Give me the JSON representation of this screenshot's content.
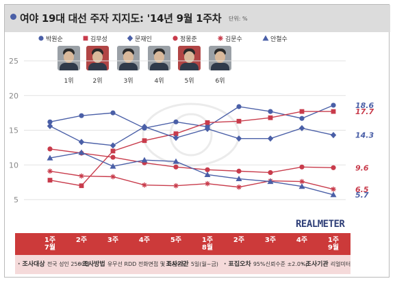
{
  "title": "여야 19대 대선 주자 지지도: '14년 9월 1주차",
  "unit": "단위: %",
  "legend": [
    {
      "name": "박원순",
      "marker": "circle",
      "color": "#4a5fa7"
    },
    {
      "name": "김무성",
      "marker": "square",
      "color": "#c83b4b"
    },
    {
      "name": "문재인",
      "marker": "diamond",
      "color": "#4a5fa7"
    },
    {
      "name": "정몽준",
      "marker": "circle",
      "color": "#c83b4b"
    },
    {
      "name": "김문수",
      "marker": "asterisk",
      "color": "#c83b4b"
    },
    {
      "name": "안철수",
      "marker": "triangle",
      "color": "#4a5fa7"
    }
  ],
  "ranks": [
    "1위",
    "2위",
    "3위",
    "4위",
    "5위",
    "6위"
  ],
  "brand": "REALMETER",
  "footnote": {
    "items": [
      {
        "label": "조사대상",
        "text": "전국 성인 2500명"
      },
      {
        "label": "조사방법",
        "text": "유무선 RDD 전화면접 및 자동응답"
      },
      {
        "label": "조사기간",
        "text": "5일(월~금)"
      },
      {
        "label": "표집오차",
        "text": "95%신뢰수준 ±2.0%p"
      },
      {
        "label": "조사기관",
        "text": "리얼미터"
      }
    ]
  },
  "chart_data": {
    "type": "line",
    "title": "여야 19대 대선 주자 지지도: '14년 9월 1주차",
    "unit": "%",
    "x": [
      "1주\n7월",
      "2주",
      "3주",
      "4주",
      "5주",
      "1주\n8월",
      "2주",
      "3주",
      "4주",
      "1주\n9월"
    ],
    "ylim": [
      5,
      25
    ],
    "yticks": [
      5,
      10,
      15,
      20,
      25
    ],
    "grid": true,
    "legend_position": "top",
    "series": [
      {
        "name": "박원순",
        "color": "#4a5fa7",
        "marker": "circle",
        "values": [
          16.2,
          17.1,
          17.5,
          15.3,
          16.2,
          15.5,
          18.4,
          17.7,
          16.7,
          18.6
        ],
        "end_label": "18.6"
      },
      {
        "name": "김무성",
        "color": "#c83b4b",
        "marker": "square",
        "values": [
          7.8,
          7.0,
          12.0,
          13.5,
          14.5,
          16.1,
          16.3,
          16.8,
          17.7,
          17.7
        ],
        "end_label": "17.7"
      },
      {
        "name": "문재인",
        "color": "#4a5fa7",
        "marker": "diamond",
        "values": [
          15.6,
          13.3,
          12.8,
          15.5,
          13.9,
          15.2,
          13.8,
          13.8,
          15.3,
          14.3
        ],
        "end_label": "14.3"
      },
      {
        "name": "정몽준",
        "color": "#c83b4b",
        "marker": "circle",
        "values": [
          12.3,
          11.7,
          11.1,
          10.3,
          9.7,
          9.3,
          9.1,
          8.9,
          9.7,
          9.6
        ],
        "end_label": "9.6"
      },
      {
        "name": "김문수",
        "color": "#c83b4b",
        "marker": "asterisk",
        "values": [
          9.1,
          8.4,
          8.3,
          7.1,
          7.0,
          7.3,
          6.8,
          7.7,
          7.6,
          6.5
        ],
        "end_label": "6.5"
      },
      {
        "name": "안철수",
        "color": "#4a5fa7",
        "marker": "triangle",
        "values": [
          11.0,
          11.8,
          9.8,
          10.7,
          10.5,
          8.6,
          8.0,
          7.6,
          6.9,
          5.7
        ],
        "end_label": "5.7"
      }
    ]
  }
}
